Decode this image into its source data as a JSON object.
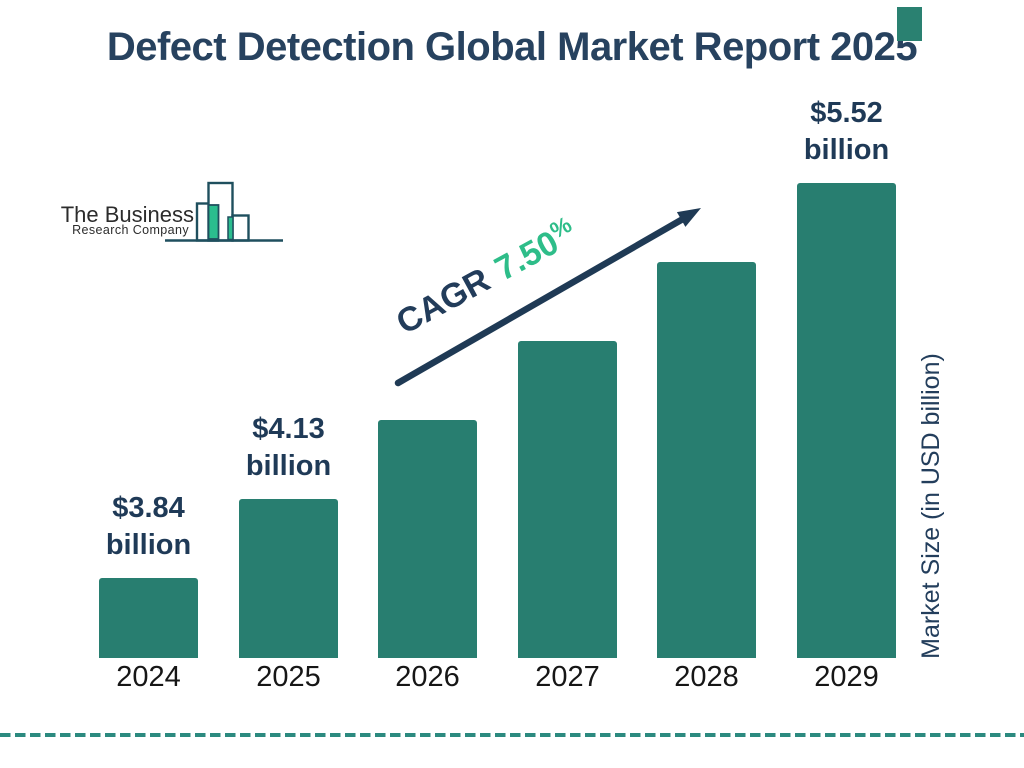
{
  "title": "Defect Detection Global Market Report 2025",
  "logo": {
    "name_line1": "The Business",
    "name_line2": "Research Company"
  },
  "cagr": {
    "label": "CAGR",
    "value": "7.50",
    "unit": "%"
  },
  "y_axis_label": "Market Size (in USD billion)",
  "chart_data": {
    "type": "bar",
    "title": "Defect Detection Global Market Report 2025",
    "categories": [
      "2024",
      "2025",
      "2026",
      "2027",
      "2028",
      "2029"
    ],
    "values": [
      3.84,
      4.13,
      4.44,
      4.77,
      5.13,
      5.52
    ],
    "unit": "USD billion",
    "value_labels": [
      {
        "index": 0,
        "line1": "$3.84",
        "line2": "billion"
      },
      {
        "index": 1,
        "line1": "$4.13",
        "line2": "billion"
      },
      {
        "index": 5,
        "line1": "$5.52",
        "line2": "billion"
      }
    ],
    "xlabel": "",
    "ylabel": "Market Size (in USD billion)",
    "annotation": "CAGR 7.50%",
    "legend": false,
    "grid": false,
    "bar_color": "#287E70"
  },
  "colors": {
    "navy_text": "#223C5A",
    "title_navy": "#27425F",
    "teal_bar": "#287E70",
    "green_accent": "#2EBD89",
    "dashed_line": "#2B8A7F",
    "arrow_navy": "#1F3A55",
    "logo_outline": "#1F4F5E",
    "logo_fill": "#2BBD8E",
    "corner_accent": "#2A8171"
  }
}
